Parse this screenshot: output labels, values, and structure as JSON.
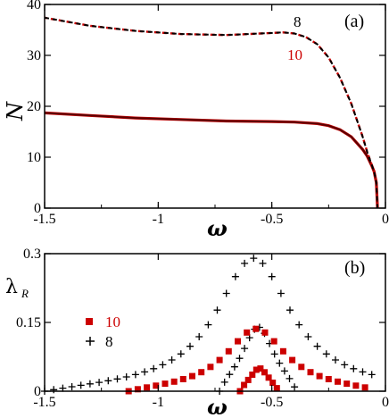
{
  "colors": {
    "black": "#000000",
    "red": "#cc0000",
    "darkred": "#5a0000"
  },
  "chart_data": [
    {
      "type": "line",
      "panel_label": "(a)",
      "xlabel": "ω",
      "ylabel": "N",
      "xlim": [
        -1.5,
        0
      ],
      "ylim": [
        0,
        40
      ],
      "xticks": [
        -1.5,
        -1,
        -0.5,
        0
      ],
      "xtick_labels": [
        "-1.5",
        "-1",
        "-0.5",
        "0"
      ],
      "yticks": [
        0,
        10,
        20,
        30,
        40
      ],
      "ytick_labels": [
        "0",
        "10",
        "20",
        "30",
        "40"
      ],
      "annotations": [
        {
          "text": "8",
          "color": "#000000"
        },
        {
          "text": "10",
          "color": "#cc0000"
        }
      ],
      "series": [
        {
          "style": "solid",
          "x": [
            -1.5,
            -1.3,
            -1.1,
            -0.9,
            -0.7,
            -0.5,
            -0.4,
            -0.3,
            -0.25,
            -0.2,
            -0.15,
            -0.1,
            -0.08,
            -0.06,
            -0.05,
            -0.04,
            -0.035
          ],
          "y": [
            18.7,
            18.2,
            17.7,
            17.4,
            17.1,
            17.0,
            16.9,
            16.6,
            16.2,
            15.4,
            14.0,
            11.5,
            10.2,
            8.3,
            7.2,
            5.0,
            0
          ]
        },
        {
          "style": "dashed",
          "x": [
            -1.5,
            -1.3,
            -1.1,
            -0.9,
            -0.7,
            -0.55,
            -0.45,
            -0.4,
            -0.35,
            -0.3,
            -0.25,
            -0.2,
            -0.15,
            -0.1,
            -0.08,
            -0.06,
            -0.05,
            -0.04,
            -0.035
          ],
          "y": [
            37.4,
            35.8,
            34.8,
            34.2,
            34.0,
            34.3,
            34.5,
            34.3,
            33.6,
            32.2,
            29.6,
            25.6,
            20.5,
            14.0,
            11.0,
            8.5,
            7.2,
            5.0,
            0
          ]
        }
      ]
    },
    {
      "type": "scatter",
      "panel_label": "(b)",
      "xlabel": "ω",
      "ylabel": "λR",
      "ylabel_main": "λ",
      "ylabel_sub": "R",
      "xlim": [
        -1.5,
        0
      ],
      "ylim": [
        0,
        0.3
      ],
      "xticks": [
        -1.5,
        -1,
        -0.5,
        0
      ],
      "xtick_labels": [
        "-1.5",
        "-1",
        "-0.5",
        "0"
      ],
      "yticks": [
        0,
        0.15,
        0.3
      ],
      "ytick_labels": [
        "0",
        "0.15",
        "0.3"
      ],
      "legend": [
        {
          "label": "10",
          "marker": "square",
          "color": "#cc0000"
        },
        {
          "label": "8",
          "marker": "plus",
          "color": "#000000"
        }
      ],
      "series": [
        {
          "name": "8",
          "marker": "plus",
          "branch_outer": {
            "peak_x": -0.58,
            "peak_y": 0.29,
            "width": 0.2,
            "x_range": [
              -1.5,
              -0.05
            ],
            "step": 0.04
          },
          "branch_inner": {
            "peak_x": -0.56,
            "peak_y": 0.14,
            "width": 0.085,
            "x_range": [
              -0.73,
              -0.39
            ],
            "step": 0.022
          }
        },
        {
          "name": "10",
          "marker": "square",
          "branch_outer": {
            "peak_x": -0.57,
            "peak_y": 0.136,
            "width": 0.16,
            "x_range": [
              -1.13,
              -0.08
            ],
            "step": 0.04
          },
          "branch_inner": {
            "peak_x": -0.555,
            "peak_y": 0.05,
            "width": 0.05,
            "x_range": [
              -0.64,
              -0.47
            ],
            "step": 0.018
          }
        }
      ]
    }
  ]
}
